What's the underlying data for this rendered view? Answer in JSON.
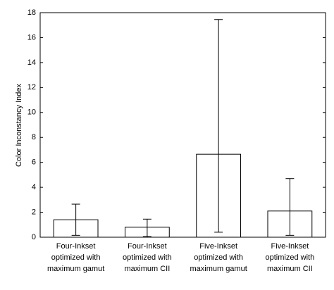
{
  "chart_data": {
    "type": "bar",
    "categories": [
      [
        "Four-Inkset",
        "optimized with",
        "maximum gamut"
      ],
      [
        "Four-Inkset",
        "optimized with",
        "maximum CII"
      ],
      [
        "Five-Inkset",
        "optimized with",
        "maximum gamut"
      ],
      [
        "Five-Inkset",
        "optimized with",
        "maximum CII"
      ]
    ],
    "values": [
      1.4,
      0.8,
      6.65,
      2.1
    ],
    "errors_lower": [
      1.25,
      0.75,
      6.25,
      1.95
    ],
    "errors_upper": [
      1.25,
      0.65,
      10.8,
      2.6
    ],
    "color": "#ffffff",
    "y_label": "Color Inconstancy Index",
    "ylim": [
      0,
      18
    ],
    "yticks": [
      0,
      2,
      4,
      6,
      8,
      10,
      12,
      14,
      16,
      18
    ],
    "grid": false
  }
}
